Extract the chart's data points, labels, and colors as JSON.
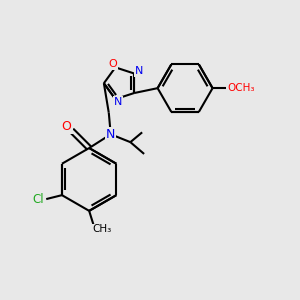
{
  "background_color": "#e8e8e8",
  "bond_color": "#000000",
  "atom_colors": {
    "O": "#ff0000",
    "N": "#0000ee",
    "Cl": "#22aa22",
    "C": "#000000"
  },
  "figsize": [
    3.0,
    3.0
  ],
  "dpi": 100
}
